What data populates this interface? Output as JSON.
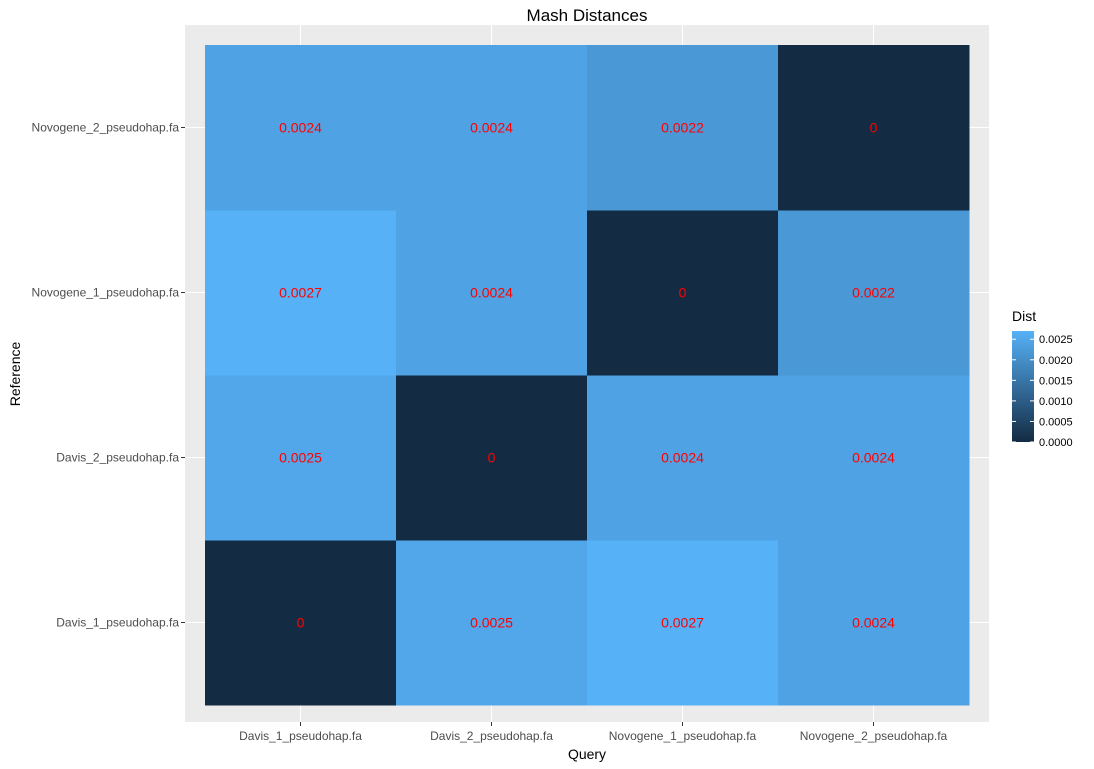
{
  "chart_data": {
    "type": "heatmap",
    "title": "Mash Distances",
    "xlabel": "Query",
    "ylabel": "Reference",
    "x_categories": [
      "Davis_1_pseudohap.fa",
      "Davis_2_pseudohap.fa",
      "Novogene_1_pseudohap.fa",
      "Novogene_2_pseudohap.fa"
    ],
    "y_categories": [
      "Davis_1_pseudohap.fa",
      "Davis_2_pseudohap.fa",
      "Novogene_1_pseudohap.fa",
      "Novogene_2_pseudohap.fa"
    ],
    "cells": [
      {
        "query": "Davis_1_pseudohap.fa",
        "reference": "Davis_1_pseudohap.fa",
        "value": 0,
        "label": "0"
      },
      {
        "query": "Davis_2_pseudohap.fa",
        "reference": "Davis_1_pseudohap.fa",
        "value": 0.0025,
        "label": "0.0025"
      },
      {
        "query": "Novogene_1_pseudohap.fa",
        "reference": "Davis_1_pseudohap.fa",
        "value": 0.0027,
        "label": "0.0027"
      },
      {
        "query": "Novogene_2_pseudohap.fa",
        "reference": "Davis_1_pseudohap.fa",
        "value": 0.0024,
        "label": "0.0024"
      },
      {
        "query": "Davis_1_pseudohap.fa",
        "reference": "Davis_2_pseudohap.fa",
        "value": 0.0025,
        "label": "0.0025"
      },
      {
        "query": "Davis_2_pseudohap.fa",
        "reference": "Davis_2_pseudohap.fa",
        "value": 0,
        "label": "0"
      },
      {
        "query": "Novogene_1_pseudohap.fa",
        "reference": "Davis_2_pseudohap.fa",
        "value": 0.0024,
        "label": "0.0024"
      },
      {
        "query": "Novogene_2_pseudohap.fa",
        "reference": "Davis_2_pseudohap.fa",
        "value": 0.0024,
        "label": "0.0024"
      },
      {
        "query": "Davis_1_pseudohap.fa",
        "reference": "Novogene_1_pseudohap.fa",
        "value": 0.0027,
        "label": "0.0027"
      },
      {
        "query": "Davis_2_pseudohap.fa",
        "reference": "Novogene_1_pseudohap.fa",
        "value": 0.0024,
        "label": "0.0024"
      },
      {
        "query": "Novogene_1_pseudohap.fa",
        "reference": "Novogene_1_pseudohap.fa",
        "value": 0,
        "label": "0"
      },
      {
        "query": "Novogene_2_pseudohap.fa",
        "reference": "Novogene_1_pseudohap.fa",
        "value": 0.0022,
        "label": "0.0022"
      },
      {
        "query": "Davis_1_pseudohap.fa",
        "reference": "Novogene_2_pseudohap.fa",
        "value": 0.0024,
        "label": "0.0024"
      },
      {
        "query": "Davis_2_pseudohap.fa",
        "reference": "Novogene_2_pseudohap.fa",
        "value": 0.0024,
        "label": "0.0024"
      },
      {
        "query": "Novogene_1_pseudohap.fa",
        "reference": "Novogene_2_pseudohap.fa",
        "value": 0.0022,
        "label": "0.0022"
      },
      {
        "query": "Novogene_2_pseudohap.fa",
        "reference": "Novogene_2_pseudohap.fa",
        "value": 0,
        "label": "0"
      }
    ],
    "legend": {
      "title": "Dist",
      "placement": "right",
      "breaks": [
        0,
        0.0005,
        0.001,
        0.0015,
        0.002,
        0.0025
      ],
      "labels": [
        "0.0000",
        "0.0005",
        "0.0010",
        "0.0015",
        "0.0020",
        "0.0025"
      ],
      "range": [
        0,
        0.0027
      ]
    },
    "colors": {
      "low": "#132B43",
      "high": "#56B1F7",
      "label_color": "#ff0000",
      "panel_background": "#ebebeb",
      "grid": "#ffffff"
    },
    "grid": true
  }
}
